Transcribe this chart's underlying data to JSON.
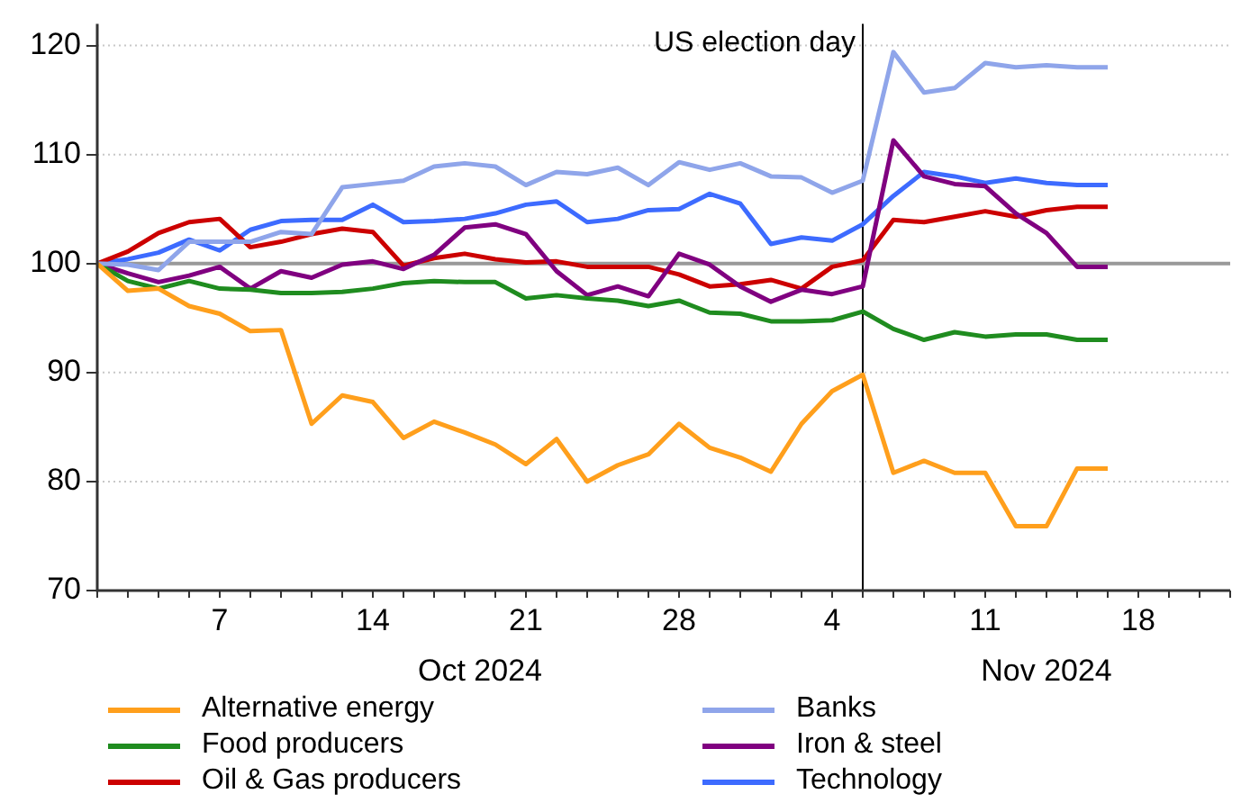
{
  "chart_data": {
    "type": "line",
    "categories": [
      null,
      null,
      null,
      null,
      "7",
      null,
      null,
      null,
      null,
      "14",
      null,
      null,
      null,
      null,
      "21",
      null,
      null,
      null,
      null,
      "28",
      null,
      null,
      null,
      null,
      "4",
      null,
      null,
      null,
      null,
      "11",
      null,
      null,
      null,
      null,
      "18",
      null,
      null,
      null
    ],
    "series": [
      {
        "name": "Alternative energy",
        "color": "#ff9f1c",
        "values": [
          100,
          97.5,
          97.7,
          96.1,
          95.4,
          93.8,
          93.9,
          85.3,
          87.9,
          87.3,
          84.0,
          85.5,
          84.5,
          83.4,
          81.6,
          83.9,
          80.0,
          81.5,
          82.5,
          85.3,
          83.1,
          82.2,
          80.9,
          85.3,
          88.3,
          89.8,
          80.8,
          81.9,
          80.8,
          80.8,
          75.9,
          75.9,
          81.2,
          81.2,
          null,
          null,
          null,
          null
        ]
      },
      {
        "name": "Banks",
        "color": "#8fa5ea",
        "values": [
          100,
          99.9,
          99.4,
          102.0,
          102.0,
          102.0,
          102.9,
          102.7,
          107.0,
          107.3,
          107.6,
          108.9,
          109.2,
          108.9,
          107.2,
          108.4,
          108.2,
          108.8,
          107.2,
          109.3,
          108.6,
          109.2,
          108.0,
          107.9,
          106.5,
          107.6,
          119.4,
          115.7,
          116.1,
          118.4,
          118.0,
          118.2,
          118.0,
          118.0,
          null,
          null,
          null,
          null
        ]
      },
      {
        "name": "Food producers",
        "color": "#1f8c1f",
        "values": [
          100,
          98.4,
          97.7,
          98.4,
          97.7,
          97.6,
          97.3,
          97.3,
          97.4,
          97.7,
          98.2,
          98.4,
          98.3,
          98.3,
          96.8,
          97.1,
          96.8,
          96.6,
          96.1,
          96.6,
          95.5,
          95.4,
          94.7,
          94.7,
          94.8,
          95.6,
          94.0,
          93.0,
          93.7,
          93.3,
          93.5,
          93.5,
          93.0,
          93.0,
          null,
          null,
          null,
          null
        ]
      },
      {
        "name": "Iron & steel",
        "color": "#800080",
        "values": [
          100,
          99.1,
          98.3,
          98.9,
          99.7,
          97.7,
          99.3,
          98.7,
          99.9,
          100.2,
          99.5,
          100.8,
          103.3,
          103.6,
          102.7,
          99.3,
          97.1,
          97.9,
          97.0,
          100.9,
          99.9,
          97.9,
          96.5,
          97.6,
          97.2,
          97.9,
          111.3,
          108.0,
          107.3,
          107.1,
          104.6,
          102.8,
          99.7,
          99.7,
          null,
          null,
          null,
          null
        ]
      },
      {
        "name": "Oil & Gas producers",
        "color": "#cc0000",
        "values": [
          100,
          101.1,
          102.8,
          103.8,
          104.1,
          101.5,
          102.0,
          102.7,
          103.2,
          102.9,
          99.8,
          100.5,
          100.9,
          100.4,
          100.1,
          100.2,
          99.7,
          99.7,
          99.7,
          99.0,
          97.9,
          98.1,
          98.5,
          97.7,
          99.7,
          100.3,
          104.0,
          103.8,
          104.3,
          104.8,
          104.3,
          104.9,
          105.2,
          105.2,
          null,
          null,
          null,
          null
        ]
      },
      {
        "name": "Technology",
        "color": "#3d6bff",
        "values": [
          100,
          100.4,
          101.0,
          102.2,
          101.2,
          103.1,
          103.9,
          104.0,
          104.0,
          105.4,
          103.8,
          103.9,
          104.1,
          104.6,
          105.4,
          105.7,
          103.8,
          104.1,
          104.9,
          105.0,
          106.4,
          105.5,
          101.8,
          102.4,
          102.1,
          103.6,
          106.2,
          108.4,
          108.0,
          107.4,
          107.8,
          107.4,
          107.2,
          107.2,
          null,
          null,
          null,
          null
        ]
      }
    ],
    "ylim": [
      70,
      122
    ],
    "yticks": [
      70,
      80,
      90,
      100,
      110,
      120
    ],
    "ref_lines": [
      {
        "axis": "y",
        "value": 100,
        "color": "#999999"
      }
    ],
    "annotations": [
      "Oct 2024",
      "Nov 2024",
      "US election day"
    ],
    "grid": "y",
    "legend": "bottom",
    "marker": "none",
    "line_style": "solid"
  }
}
